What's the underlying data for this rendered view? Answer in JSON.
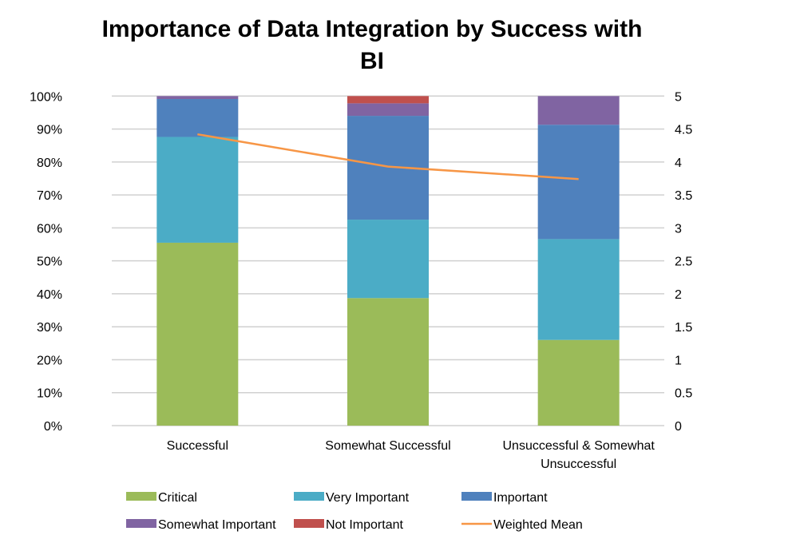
{
  "chart_data": {
    "type": "bar",
    "stacked": true,
    "title": "Importance of Data Integration by Success with BI",
    "title_lines": [
      "Importance of Data Integration by Success with",
      "BI"
    ],
    "categories": [
      "Successful",
      "Somewhat Successful",
      "Unsuccessful & Somewhat Unsuccessful"
    ],
    "category_lines": [
      [
        "Successful"
      ],
      [
        "Somewhat Successful"
      ],
      [
        "Unsuccessful & Somewhat",
        "Unsuccessful"
      ]
    ],
    "series": [
      {
        "name": "Critical",
        "color": "#9BBB59",
        "values": [
          55.5,
          38.7,
          26.0
        ]
      },
      {
        "name": "Very Important",
        "color": "#4BACC6",
        "values": [
          32.1,
          23.8,
          30.6
        ]
      },
      {
        "name": "Important",
        "color": "#4F81BD",
        "values": [
          11.5,
          31.5,
          34.7
        ]
      },
      {
        "name": "Somewhat Important",
        "color": "#8064A2",
        "values": [
          0.9,
          3.8,
          8.7
        ]
      },
      {
        "name": "Not Important",
        "color": "#C0504D",
        "values": [
          0.0,
          2.2,
          0.0
        ]
      }
    ],
    "line_series": {
      "name": "Weighted Mean",
      "color": "#F79646",
      "axis": "right",
      "values": [
        4.42,
        3.93,
        3.74
      ]
    },
    "ylim": [
      0,
      100
    ],
    "y_ticks": [
      "0%",
      "10%",
      "20%",
      "30%",
      "40%",
      "50%",
      "60%",
      "70%",
      "80%",
      "90%",
      "100%"
    ],
    "y2lim": [
      0,
      5
    ],
    "y2_ticks": [
      "0",
      "0.5",
      "1",
      "1.5",
      "2",
      "2.5",
      "3",
      "3.5",
      "4",
      "4.5",
      "5"
    ],
    "grid": true,
    "legend_position": "bottom",
    "xlabel": "",
    "ylabel": ""
  }
}
